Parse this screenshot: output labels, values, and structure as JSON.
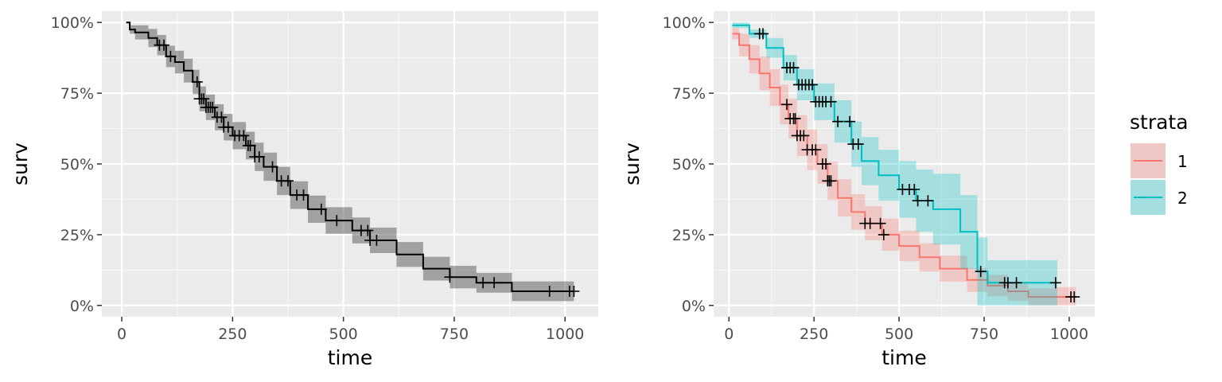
{
  "chart_data": [
    {
      "type": "line",
      "subtype": "kaplan-meier",
      "title": "",
      "xlabel": "time",
      "ylabel": "surv",
      "xlim": [
        -45,
        1075
      ],
      "ylim": [
        -0.04,
        1.04
      ],
      "x_ticks": [
        0,
        250,
        500,
        750,
        1000
      ],
      "x_tick_labels": [
        "0",
        "250",
        "500",
        "750",
        "1000"
      ],
      "y_ticks": [
        0,
        0.25,
        0.5,
        0.75,
        1
      ],
      "y_tick_labels": [
        "0%",
        "25%",
        "50%",
        "75%",
        "100%"
      ],
      "grid": true,
      "series": [
        {
          "color": "#000000",
          "band_color": "#333333",
          "ci_half_width": [
            0,
            0.015,
            0.025,
            0.032,
            0.036,
            0.038,
            0.04,
            0.042,
            0.043,
            0.044,
            0.045,
            0.046,
            0.047,
            0.048,
            0.049,
            0.05,
            0.05,
            0.05,
            0.049,
            0.048,
            0.047,
            0.046,
            0.045,
            0.044,
            0.042,
            0.04,
            0.035,
            0.035
          ],
          "steps": [
            [
              10,
              1.0
            ],
            [
              18,
              0.975
            ],
            [
              30,
              0.965
            ],
            [
              60,
              0.945
            ],
            [
              80,
              0.92
            ],
            [
              100,
              0.88
            ],
            [
              120,
              0.86
            ],
            [
              140,
              0.83
            ],
            [
              160,
              0.79
            ],
            [
              175,
              0.73
            ],
            [
              190,
              0.7
            ],
            [
              210,
              0.665
            ],
            [
              230,
              0.63
            ],
            [
              250,
              0.6
            ],
            [
              280,
              0.565
            ],
            [
              300,
              0.525
            ],
            [
              320,
              0.49
            ],
            [
              350,
              0.44
            ],
            [
              380,
              0.39
            ],
            [
              420,
              0.34
            ],
            [
              460,
              0.3
            ],
            [
              520,
              0.265
            ],
            [
              560,
              0.23
            ],
            [
              620,
              0.18
            ],
            [
              680,
              0.13
            ],
            [
              740,
              0.1
            ],
            [
              800,
              0.08
            ],
            [
              880,
              0.05
            ]
          ],
          "x_end": 1020,
          "censor_times": [
            85,
            95,
            110,
            170,
            175,
            180,
            185,
            190,
            195,
            200,
            205,
            215,
            225,
            230,
            240,
            255,
            265,
            275,
            285,
            290,
            300,
            310,
            340,
            360,
            375,
            395,
            410,
            450,
            485,
            540,
            555,
            560,
            575,
            740,
            815,
            840,
            965,
            1010,
            1020
          ]
        }
      ]
    },
    {
      "type": "line",
      "subtype": "kaplan-meier",
      "title": "",
      "xlabel": "time",
      "ylabel": "surv",
      "xlim": [
        -45,
        1075
      ],
      "ylim": [
        -0.04,
        1.04
      ],
      "x_ticks": [
        0,
        250,
        500,
        750,
        1000
      ],
      "x_tick_labels": [
        "0",
        "250",
        "500",
        "750",
        "1000"
      ],
      "y_ticks": [
        0,
        0.25,
        0.5,
        0.75,
        1
      ],
      "y_tick_labels": [
        "0%",
        "25%",
        "50%",
        "75%",
        "100%"
      ],
      "grid": true,
      "legend": {
        "title": "strata",
        "position": "right"
      },
      "series": [
        {
          "name": "1",
          "color": "#F8766D",
          "band_color": "#F8766D",
          "ci_half_width": [
            0.02,
            0.04,
            0.05,
            0.06,
            0.065,
            0.07,
            0.07,
            0.072,
            0.072,
            0.07,
            0.068,
            0.066,
            0.063,
            0.06,
            0.057,
            0.054,
            0.05,
            0.046,
            0.042,
            0.038,
            0.034,
            0.03,
            0.035
          ],
          "steps": [
            [
              10,
              0.96
            ],
            [
              30,
              0.92
            ],
            [
              60,
              0.87
            ],
            [
              90,
              0.82
            ],
            [
              120,
              0.77
            ],
            [
              150,
              0.71
            ],
            [
              175,
              0.66
            ],
            [
              200,
              0.6
            ],
            [
              230,
              0.55
            ],
            [
              260,
              0.5
            ],
            [
              290,
              0.44
            ],
            [
              320,
              0.38
            ],
            [
              360,
              0.33
            ],
            [
              400,
              0.29
            ],
            [
              450,
              0.25
            ],
            [
              500,
              0.21
            ],
            [
              560,
              0.17
            ],
            [
              620,
              0.13
            ],
            [
              700,
              0.09
            ],
            [
              760,
              0.07
            ],
            [
              820,
              0.05
            ],
            [
              880,
              0.03
            ],
            [
              960,
              0.03
            ]
          ],
          "x_end": 1020,
          "censor_times": [
            170,
            180,
            190,
            195,
            200,
            210,
            220,
            230,
            245,
            255,
            275,
            285,
            290,
            295,
            300,
            400,
            415,
            445,
            455,
            1005,
            1015
          ]
        },
        {
          "name": "2",
          "color": "#00BFC4",
          "band_color": "#00BFC4",
          "ci_half_width": [
            0.01,
            0.015,
            0.035,
            0.045,
            0.055,
            0.065,
            0.075,
            0.08,
            0.085,
            0.09,
            0.1,
            0.11,
            0.125,
            0.13,
            0.12,
            0.08
          ],
          "steps": [
            [
              10,
              0.99
            ],
            [
              60,
              0.96
            ],
            [
              110,
              0.91
            ],
            [
              160,
              0.84
            ],
            [
              200,
              0.78
            ],
            [
              250,
              0.72
            ],
            [
              310,
              0.65
            ],
            [
              360,
              0.57
            ],
            [
              390,
              0.51
            ],
            [
              440,
              0.46
            ],
            [
              500,
              0.41
            ],
            [
              550,
              0.37
            ],
            [
              600,
              0.34
            ],
            [
              680,
              0.26
            ],
            [
              730,
              0.12
            ],
            [
              760,
              0.08
            ]
          ],
          "x_end": 965,
          "censor_times": [
            90,
            100,
            170,
            180,
            190,
            205,
            215,
            225,
            235,
            245,
            255,
            265,
            275,
            285,
            300,
            320,
            355,
            365,
            380,
            510,
            530,
            545,
            555,
            585,
            740,
            810,
            820,
            845,
            960
          ]
        }
      ]
    }
  ]
}
